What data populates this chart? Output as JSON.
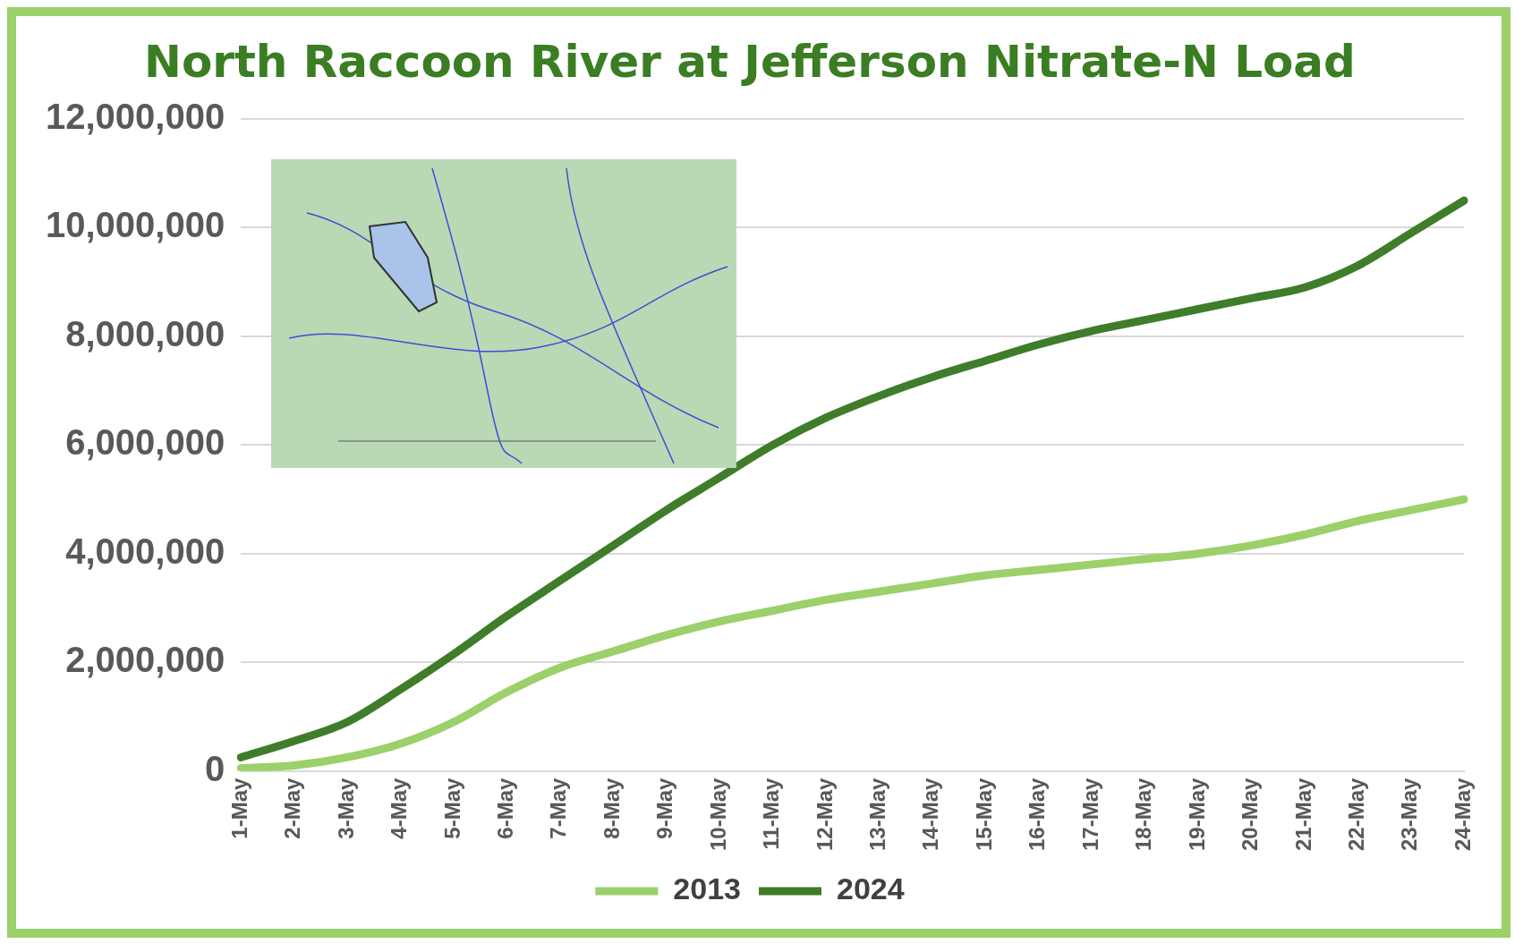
{
  "chart_data": {
    "type": "line",
    "title": "North Raccoon River at Jefferson Nitrate-N Load",
    "categories": [
      "1-May",
      "2-May",
      "3-May",
      "4-May",
      "5-May",
      "6-May",
      "7-May",
      "8-May",
      "9-May",
      "10-May",
      "11-May",
      "12-May",
      "13-May",
      "14-May",
      "15-May",
      "16-May",
      "17-May",
      "18-May",
      "19-May",
      "20-May",
      "21-May",
      "22-May",
      "23-May",
      "24-May"
    ],
    "series": [
      {
        "name": "2013",
        "color": "#9bd06a",
        "values": [
          50000,
          100000,
          250000,
          500000,
          900000,
          1450000,
          1900000,
          2200000,
          2500000,
          2750000,
          2950000,
          3150000,
          3300000,
          3450000,
          3600000,
          3700000,
          3800000,
          3900000,
          4000000,
          4150000,
          4350000,
          4600000,
          4800000,
          5000000
        ]
      },
      {
        "name": "2024",
        "color": "#3f7d2a",
        "values": [
          250000,
          550000,
          900000,
          1500000,
          2150000,
          2850000,
          3500000,
          4150000,
          4800000,
          5400000,
          6000000,
          6500000,
          6900000,
          7250000,
          7550000,
          7850000,
          8100000,
          8300000,
          8500000,
          8700000,
          8900000,
          9300000,
          9900000,
          10500000
        ]
      }
    ],
    "ylim": [
      0,
      12000000
    ],
    "yticks": [
      0,
      {
        "value": 2000000,
        "label": "2,000,000"
      },
      {
        "value": 4000000,
        "label": "4,000,000"
      },
      {
        "value": 6000000,
        "label": "6,000,000"
      },
      {
        "value": 8000000,
        "label": "8,000,000"
      },
      {
        "value": 10000000,
        "label": "10,000,000"
      },
      {
        "value": 12000000,
        "label": "12,000,000"
      }
    ],
    "grid": "y",
    "legend": "bottom",
    "marker": "none",
    "line_style": "solid"
  }
}
